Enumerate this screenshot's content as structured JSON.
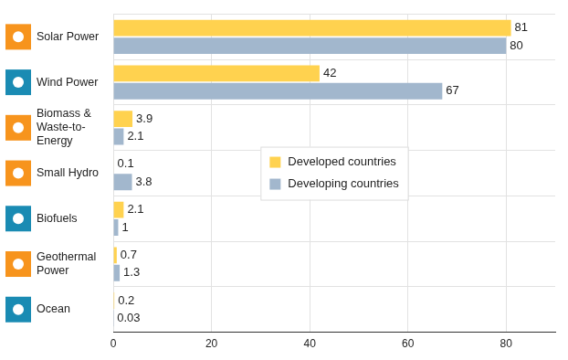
{
  "chart_data": {
    "type": "bar",
    "orientation": "horizontal",
    "categories": [
      "Solar Power",
      "Wind Power",
      "Biomass & Waste-to-Energy",
      "Small Hydro",
      "Biofuels",
      "Geothermal Power",
      "Ocean"
    ],
    "series": [
      {
        "name": "Developed countries",
        "color": "#FFD24F",
        "values": [
          81,
          42,
          3.9,
          0.1,
          2.1,
          0.7,
          0.2
        ]
      },
      {
        "name": "Developing countries",
        "color": "#A2B7CD",
        "values": [
          80,
          67,
          2.1,
          3.8,
          1,
          1.3,
          0.03
        ]
      }
    ],
    "xlim": [
      0,
      90
    ],
    "xticks": [
      0,
      20,
      40,
      60,
      80
    ],
    "grid": true,
    "legend": "center",
    "data_labels": true
  }
}
